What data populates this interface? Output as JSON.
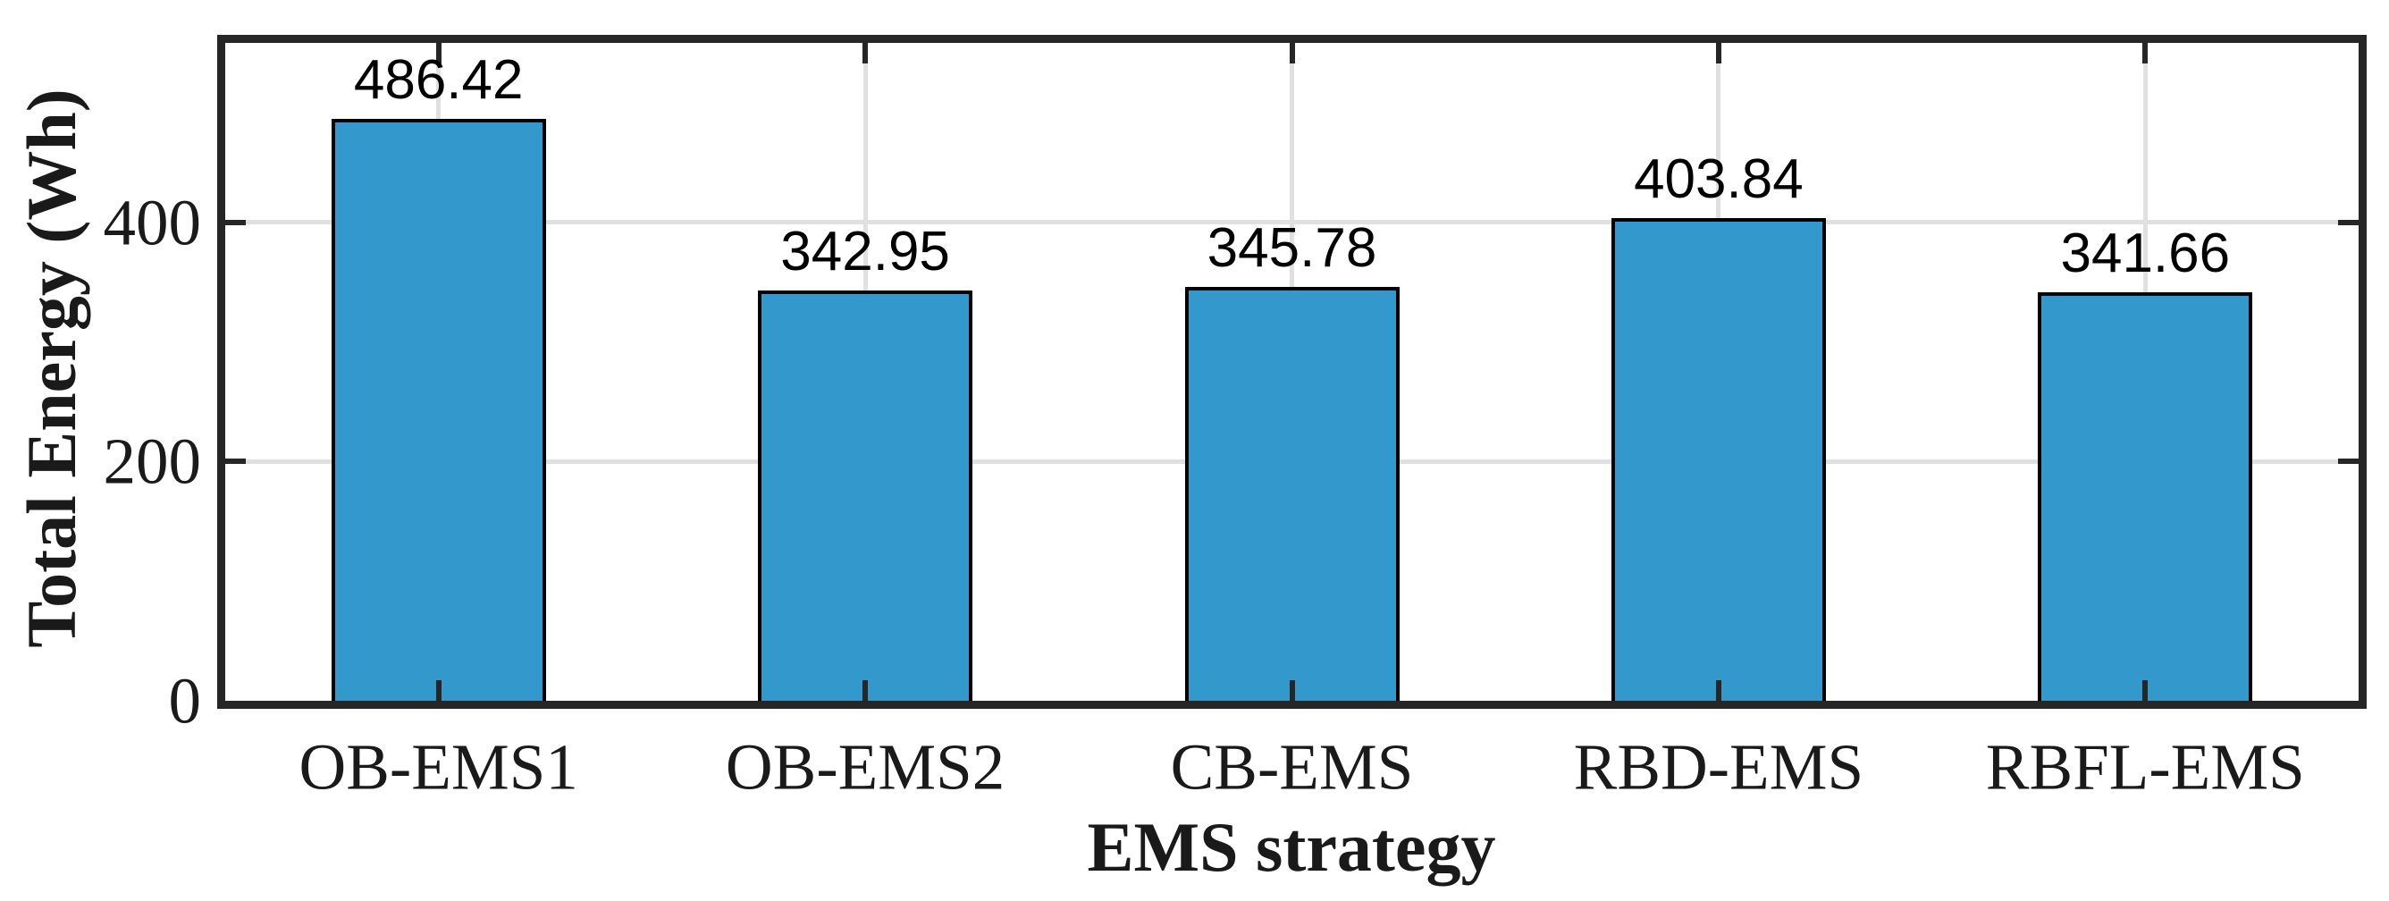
{
  "chart_data": {
    "type": "bar",
    "title": "",
    "xlabel": "EMS strategy",
    "ylabel": "Total Energy (Wh)",
    "categories": [
      "OB-EMS1",
      "OB-EMS2",
      "CB-EMS",
      "RBD-EMS",
      "RBFL-EMS"
    ],
    "values": [
      486.42,
      342.95,
      345.78,
      403.84,
      341.66
    ],
    "value_labels": [
      "486.42",
      "342.95",
      "345.78",
      "403.84",
      "341.66"
    ],
    "ylim": [
      0,
      550
    ],
    "yticks": [
      0,
      200,
      400
    ],
    "ytick_labels": [
      "0",
      "200",
      "400"
    ],
    "grid": true,
    "legend_position": "none",
    "bar_color": "#3398CB",
    "bar_edge_color": "#000000",
    "axis_color": "#262626",
    "grid_color": "#E0E0E0",
    "text_color": "#1A1A1A"
  }
}
